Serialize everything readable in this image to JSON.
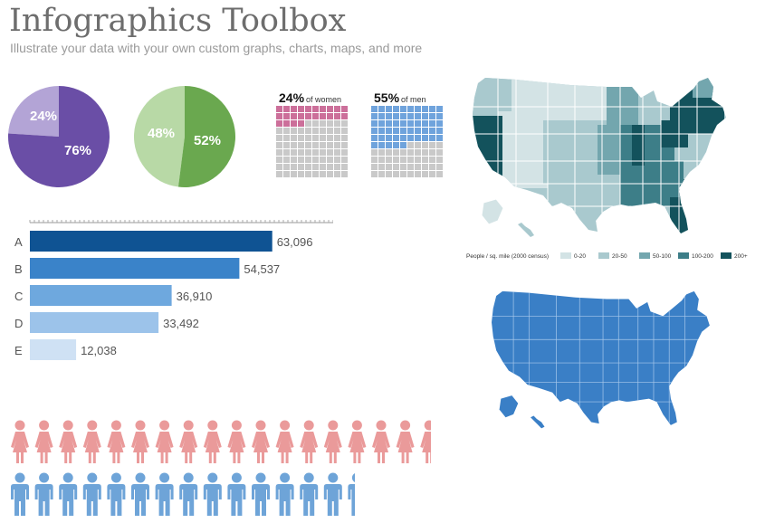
{
  "header": {
    "title": "Infographics Toolbox",
    "subtitle": "Illustrate your data with your own custom graphs, charts, maps, and more"
  },
  "colors": {
    "purple_light": "#b3a4d6",
    "purple_dark": "#6a4ea6",
    "green_light": "#b8d9a6",
    "green_dark": "#6aa84f",
    "pink": "#cc6f9a",
    "blue_waffle": "#6fa3dc",
    "gray_cell": "#c9c9c9",
    "woman_icon": "#ea9a9a",
    "man_icon": "#6ea4d8",
    "map_blue": "#3a7fc6",
    "density_scale": [
      "#d3e3e5",
      "#a9c9ce",
      "#73a6ae",
      "#3d7e88",
      "#13525c"
    ]
  },
  "icons": {
    "woman": "woman-figure-icon",
    "man": "man-figure-icon"
  },
  "chart_data": [
    {
      "type": "pie",
      "categories": [
        "24%",
        "76%"
      ],
      "values": [
        24,
        76
      ],
      "labels": [
        "24%",
        "76%"
      ]
    },
    {
      "type": "pie",
      "categories": [
        "48%",
        "52%"
      ],
      "values": [
        48,
        52
      ],
      "labels": [
        "48%",
        "52%"
      ]
    },
    {
      "type": "table",
      "subtype": "waffle",
      "value_label": "24%",
      "suffix": "of women",
      "percent": 24,
      "grid": [
        10,
        10
      ]
    },
    {
      "type": "table",
      "subtype": "waffle",
      "value_label": "55%",
      "suffix": "of men",
      "percent": 55,
      "grid": [
        10,
        10
      ]
    },
    {
      "type": "bar",
      "orientation": "horizontal",
      "categories": [
        "A",
        "B",
        "C",
        "D",
        "E"
      ],
      "values": [
        63096,
        54537,
        36910,
        33492,
        12038
      ],
      "value_labels": [
        "63,096",
        "54,537",
        "36,910",
        "33,492",
        "12,038"
      ],
      "xlim": [
        0,
        70000
      ]
    },
    {
      "type": "heatmap",
      "subtype": "choropleth-map",
      "region": "United States",
      "legend_title": "People / sq. mile (2000 census)",
      "legend_classes": [
        "0-20",
        "20-50",
        "50-100",
        "100-200",
        "200+"
      ],
      "legend_position": "bottom"
    },
    {
      "type": "heatmap",
      "subtype": "map",
      "region": "United States",
      "legend_classes": []
    },
    {
      "type": "table",
      "subtype": "pictograph",
      "rows": [
        {
          "icon": "woman-figure-icon",
          "count": 17.4
        },
        {
          "icon": "man-figure-icon",
          "count": 14.6
        }
      ]
    }
  ]
}
